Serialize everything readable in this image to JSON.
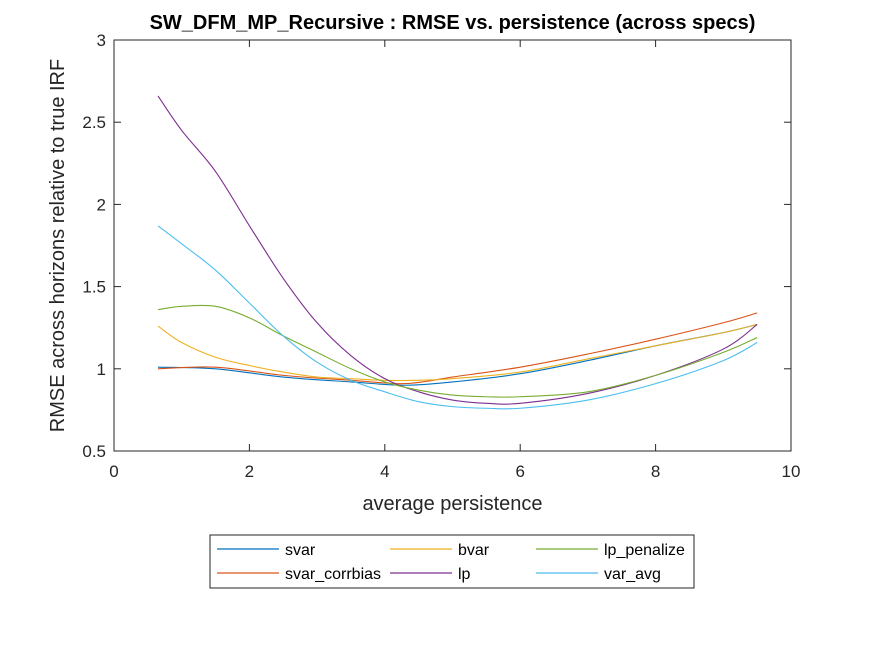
{
  "chart_data": {
    "type": "line",
    "title": "SW_DFM_MP_Recursive : RMSE vs. persistence (across specs)",
    "xlabel": "average persistence",
    "ylabel": "RMSE across horizons relative to true IRF",
    "xlim": [
      0,
      10
    ],
    "ylim": [
      0.5,
      3
    ],
    "xticks": [
      0,
      2,
      4,
      6,
      8,
      10
    ],
    "yticks": [
      0.5,
      1,
      1.5,
      2,
      2.5,
      3
    ],
    "xtick_labels": [
      "0",
      "2",
      "4",
      "6",
      "8",
      "10"
    ],
    "ytick_labels": [
      "0.5",
      "1",
      "1.5",
      "2",
      "2.5",
      "3"
    ],
    "grid": false,
    "legend": {
      "location": "bottom-outside",
      "columns": 3
    },
    "series": [
      {
        "name": "svar",
        "color": "#0072BD",
        "x": [
          0.65,
          1.5,
          2.5,
          3.5,
          4.3,
          5.0,
          6.0,
          7.0,
          8.0,
          9.0,
          9.5
        ],
        "y": [
          1.01,
          1.0,
          0.95,
          0.92,
          0.9,
          0.92,
          0.97,
          1.05,
          1.14,
          1.22,
          1.27
        ]
      },
      {
        "name": "svar_corrbias",
        "color": "#D95319",
        "x": [
          0.65,
          1.5,
          2.5,
          3.5,
          4.3,
          5.0,
          6.0,
          7.0,
          8.0,
          9.0,
          9.5
        ],
        "y": [
          1.0,
          1.01,
          0.96,
          0.93,
          0.91,
          0.95,
          1.01,
          1.09,
          1.18,
          1.28,
          1.34
        ]
      },
      {
        "name": "bvar",
        "color": "#EDB120",
        "x": [
          0.65,
          1.0,
          1.5,
          2.0,
          2.5,
          3.0,
          3.5,
          4.0,
          4.5,
          5.0,
          6.0,
          7.0,
          8.0,
          9.0,
          9.5
        ],
        "y": [
          1.26,
          1.16,
          1.07,
          1.02,
          0.98,
          0.95,
          0.94,
          0.93,
          0.93,
          0.94,
          0.98,
          1.06,
          1.14,
          1.22,
          1.27
        ]
      },
      {
        "name": "lp",
        "color": "#7E2F8E",
        "x": [
          0.65,
          1.0,
          1.5,
          2.0,
          2.5,
          3.0,
          3.5,
          4.0,
          4.5,
          5.0,
          5.5,
          6.0,
          7.0,
          8.0,
          9.0,
          9.5
        ],
        "y": [
          2.66,
          2.45,
          2.2,
          1.87,
          1.55,
          1.28,
          1.08,
          0.94,
          0.86,
          0.81,
          0.79,
          0.79,
          0.85,
          0.96,
          1.12,
          1.27
        ]
      },
      {
        "name": "lp_penalize",
        "color": "#77AC30",
        "x": [
          0.65,
          1.0,
          1.5,
          2.0,
          2.5,
          3.0,
          3.5,
          4.0,
          4.5,
          5.0,
          5.5,
          6.0,
          7.0,
          8.0,
          9.0,
          9.5
        ],
        "y": [
          1.36,
          1.38,
          1.38,
          1.31,
          1.2,
          1.1,
          1.0,
          0.92,
          0.87,
          0.84,
          0.83,
          0.83,
          0.86,
          0.96,
          1.1,
          1.19
        ]
      },
      {
        "name": "var_avg",
        "color": "#4DBEEE",
        "x": [
          0.65,
          1.0,
          1.5,
          2.0,
          2.5,
          3.0,
          3.5,
          4.0,
          4.5,
          5.0,
          5.5,
          6.0,
          7.0,
          8.0,
          9.0,
          9.5
        ],
        "y": [
          1.87,
          1.76,
          1.6,
          1.4,
          1.2,
          1.04,
          0.93,
          0.86,
          0.8,
          0.77,
          0.76,
          0.76,
          0.81,
          0.91,
          1.05,
          1.16
        ]
      }
    ]
  }
}
